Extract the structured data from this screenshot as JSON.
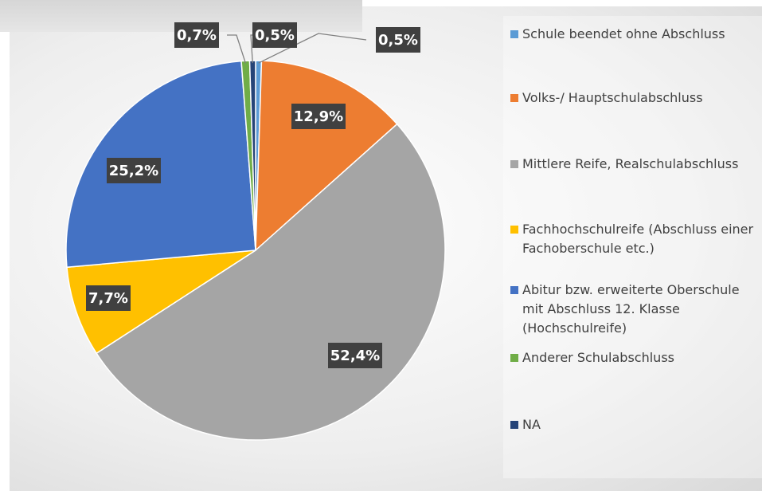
{
  "chart_data": {
    "type": "pie",
    "categories": [
      "Schule beendet ohne Abschluss",
      "Volks-/ Hauptschulabschluss",
      "Mittlere Reife, Realschulabschluss",
      "Fachhochschulreife (Abschluss einer Fachoberschule etc.)",
      "Abitur bzw. erweiterte Oberschule mit Abschluss 12. Klasse (Hochschulreife)",
      "Anderer Schulabschluss",
      "NA"
    ],
    "values": [
      0.5,
      12.9,
      52.4,
      7.7,
      25.2,
      0.7,
      0.5
    ],
    "value_labels": [
      "0,5%",
      "12,9%",
      "52,4%",
      "7,7%",
      "25,2%",
      "0,7%",
      "0,5%"
    ],
    "colors": [
      "#5b9bd5",
      "#ed7d31",
      "#a5a5a5",
      "#ffc000",
      "#4472c4",
      "#70ad47",
      "#264478"
    ],
    "legend": "right"
  }
}
